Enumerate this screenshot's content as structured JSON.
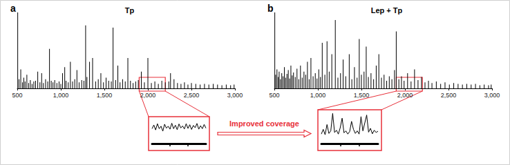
{
  "chart_data": [
    {
      "type": "bar",
      "panel": "a",
      "title": "Tp",
      "color": "#000000",
      "x": [
        505,
        520,
        540,
        560,
        575,
        590,
        610,
        630,
        650,
        670,
        690,
        710,
        735,
        760,
        780,
        800,
        825,
        850,
        870,
        890,
        910,
        930,
        955,
        980,
        1000,
        1020,
        1045,
        1060,
        1085,
        1110,
        1135,
        1160,
        1185,
        1210,
        1240,
        1265,
        1285,
        1300,
        1330,
        1365,
        1400,
        1430,
        1460,
        1490,
        1520,
        1550,
        1580,
        1600,
        1630,
        1655,
        1680,
        1710,
        1740,
        1770,
        1800,
        1830,
        1860,
        1890,
        1925,
        1960,
        2000,
        2040,
        2080,
        2120,
        2160,
        2200,
        2240,
        2260,
        2300,
        2340,
        2380,
        2420,
        2460,
        2500,
        2550,
        2600,
        2650,
        2700,
        2750,
        2800,
        2850,
        2900,
        2950,
        2990
      ],
      "values": [
        100,
        12,
        25,
        8,
        14,
        9,
        18,
        7,
        11,
        6,
        9,
        10,
        22,
        8,
        20,
        7,
        12,
        9,
        52,
        10,
        8,
        11,
        7,
        9,
        6,
        20,
        28,
        10,
        8,
        35,
        9,
        12,
        24,
        8,
        11,
        10,
        83,
        15,
        35,
        40,
        9,
        12,
        20,
        8,
        14,
        10,
        9,
        80,
        11,
        30,
        8,
        12,
        9,
        40,
        10,
        7,
        9,
        11,
        22,
        8,
        40,
        7,
        9,
        6,
        10,
        8,
        9,
        20,
        12,
        7,
        6,
        8,
        5,
        7,
        6,
        5,
        6,
        5,
        6,
        5,
        4,
        5,
        4,
        5
      ],
      "xlim": [
        500,
        3000
      ],
      "xticks": [
        500,
        1000,
        1500,
        2000,
        2500,
        3000
      ],
      "ylim": [
        0,
        100
      ],
      "tick_labels": "x",
      "inset": {
        "type": "line",
        "color": "#000000",
        "x": [
          1900,
          1910,
          1920,
          1930,
          1940,
          1950,
          1960,
          1970,
          1980,
          1990,
          2000,
          2010,
          2020,
          2030,
          2040,
          2050,
          2060,
          2070,
          2080,
          2090,
          2100,
          2110,
          2120,
          2130,
          2140,
          2150,
          2160,
          2170,
          2180,
          2190,
          2200
        ],
        "values": [
          6,
          7.5,
          5.5,
          8,
          6,
          7,
          5,
          7.8,
          6.2,
          7,
          5.8,
          8.2,
          6,
          7.4,
          5.6,
          7.9,
          6.3,
          7.1,
          5.9,
          8,
          6.1,
          7.6,
          5.7,
          7.3,
          6.4,
          8.1,
          5.8,
          7.2,
          6,
          7.7,
          6.2
        ],
        "xlim": [
          1900,
          2200
        ],
        "xticks": [
          2000,
          2100
        ],
        "ylim": [
          0,
          10
        ],
        "tick_labels": false
      }
    },
    {
      "type": "bar",
      "panel": "b",
      "title": "Lep + Tp",
      "color": "#000000",
      "annotation": "Improved coverage",
      "x": [
        505,
        515,
        530,
        545,
        555,
        570,
        585,
        600,
        615,
        630,
        645,
        660,
        675,
        690,
        705,
        720,
        740,
        760,
        780,
        800,
        820,
        840,
        860,
        880,
        900,
        920,
        945,
        970,
        990,
        1010,
        1030,
        1050,
        1080,
        1105,
        1130,
        1160,
        1200,
        1230,
        1260,
        1290,
        1320,
        1360,
        1390,
        1420,
        1450,
        1475,
        1500,
        1530,
        1555,
        1580,
        1610,
        1640,
        1670,
        1700,
        1730,
        1760,
        1790,
        1820,
        1850,
        1880,
        1900,
        1930,
        1960,
        1990,
        2030,
        2070,
        2110,
        2150,
        2190,
        2230,
        2270,
        2310,
        2360,
        2410,
        2460,
        2510,
        2560,
        2610,
        2660,
        2710,
        2760,
        2810,
        2860,
        2910,
        2960,
        2990
      ],
      "values": [
        100,
        18,
        25,
        15,
        22,
        12,
        20,
        16,
        28,
        14,
        19,
        24,
        13,
        30,
        17,
        21,
        15,
        26,
        12,
        30,
        14,
        22,
        18,
        35,
        12,
        40,
        16,
        20,
        13,
        25,
        15,
        60,
        18,
        62,
        22,
        45,
        90,
        14,
        20,
        38,
        16,
        45,
        12,
        28,
        14,
        65,
        18,
        22,
        55,
        15,
        20,
        12,
        30,
        45,
        14,
        18,
        10,
        16,
        12,
        24,
        75,
        12,
        16,
        10,
        20,
        9,
        25,
        11,
        15,
        8,
        10,
        7,
        9,
        6,
        8,
        5,
        7,
        6,
        5,
        6,
        5,
        6,
        4,
        5,
        4,
        5
      ],
      "xlim": [
        500,
        3000
      ],
      "xticks": [
        500,
        1000,
        1500,
        2000,
        2500,
        3000
      ],
      "ylim": [
        0,
        100
      ],
      "tick_labels": "x",
      "inset": {
        "type": "line",
        "color": "#000000",
        "x": [
          1900,
          1910,
          1920,
          1930,
          1940,
          1950,
          1960,
          1970,
          1980,
          1990,
          2000,
          2010,
          2020,
          2030,
          2040,
          2050,
          2060,
          2070,
          2080,
          2090,
          2100,
          2110,
          2120,
          2130,
          2140,
          2150,
          2160,
          2170,
          2180,
          2190,
          2200
        ],
        "values": [
          3,
          4.5,
          2.8,
          6,
          3.2,
          4,
          9.5,
          3.5,
          4.2,
          3,
          5,
          8,
          3.4,
          4,
          3,
          3.8,
          7,
          4.5,
          3.2,
          4,
          3,
          8.5,
          4,
          6.5,
          9,
          3.6,
          4.8,
          3.1,
          4.2,
          3.5,
          3.9
        ],
        "xlim": [
          1900,
          2200
        ],
        "xticks": [
          2000,
          2100
        ],
        "ylim": [
          0,
          10
        ],
        "tick_labels": false
      }
    }
  ]
}
